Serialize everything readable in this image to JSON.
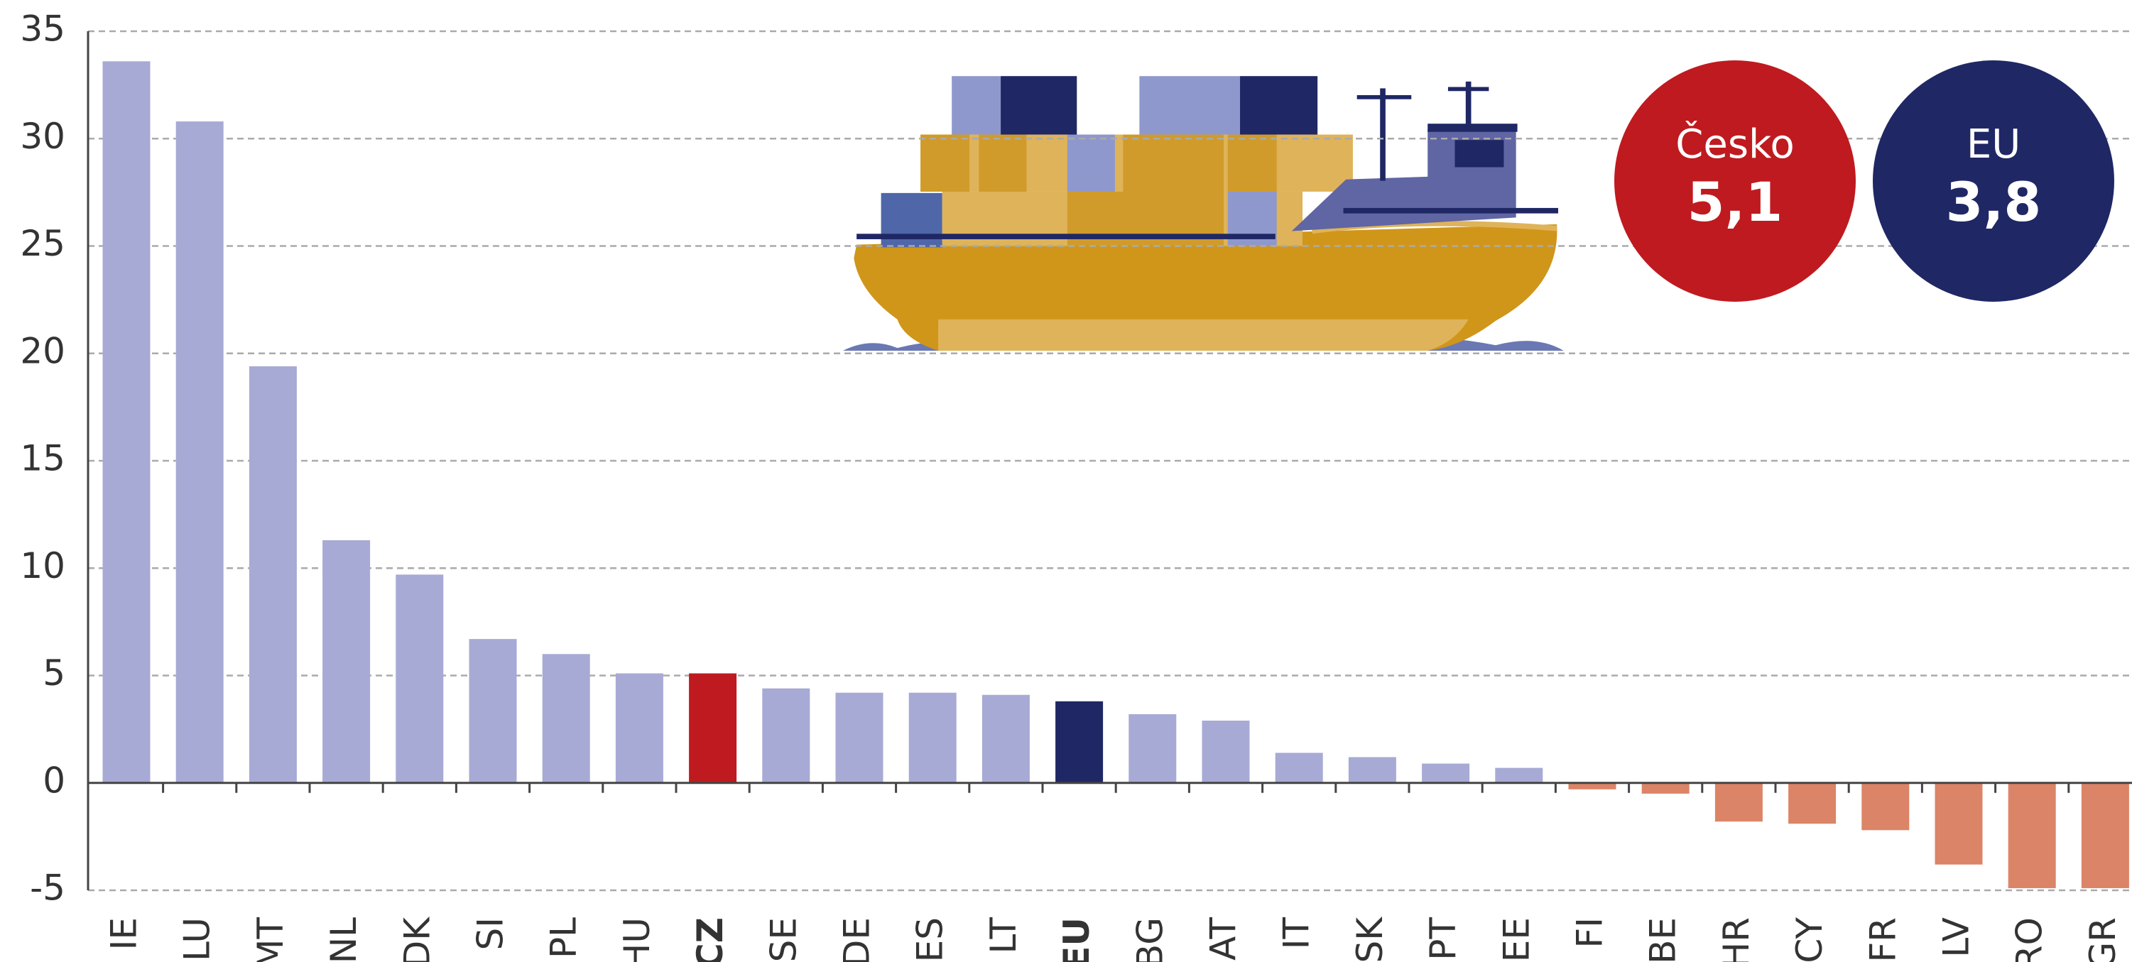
{
  "chart_data": {
    "type": "bar",
    "categories": [
      "IE",
      "LU",
      "MT",
      "NL",
      "DK",
      "SI",
      "PL",
      "HU",
      "CZ",
      "SE",
      "DE",
      "ES",
      "LT",
      "EU",
      "BG",
      "AT",
      "IT",
      "SK",
      "PT",
      "EE",
      "FI",
      "BE",
      "HR",
      "CY",
      "FR",
      "LV",
      "RO",
      "GR"
    ],
    "values": [
      33.6,
      30.8,
      19.4,
      11.3,
      9.7,
      6.7,
      6.0,
      5.1,
      5.1,
      4.4,
      4.2,
      4.2,
      4.1,
      3.8,
      3.2,
      2.9,
      1.4,
      1.2,
      0.9,
      0.7,
      -0.3,
      -0.5,
      -1.8,
      -1.9,
      -2.2,
      -3.8,
      -4.9,
      -4.9
    ],
    "colors": [
      "#a7aad4",
      "#a7aad4",
      "#a7aad4",
      "#a7aad4",
      "#a7aad4",
      "#a7aad4",
      "#a7aad4",
      "#a7aad4",
      "#bf1a1f",
      "#a7aad4",
      "#a7aad4",
      "#a7aad4",
      "#a7aad4",
      "#1f2765",
      "#a7aad4",
      "#a7aad4",
      "#a7aad4",
      "#a7aad4",
      "#a7aad4",
      "#a7aad4",
      "#dc8467",
      "#dc8467",
      "#dc8467",
      "#dc8467",
      "#dc8467",
      "#dc8467",
      "#dc8467",
      "#dc8467"
    ],
    "ylim": [
      -5,
      35
    ],
    "yticks": [
      -5,
      0,
      5,
      10,
      15,
      20,
      25,
      30,
      35
    ],
    "grid": true,
    "badges": [
      {
        "label": "Česko",
        "value": 5.1,
        "value_label": "5,1",
        "color": "#bf1a1f"
      },
      {
        "label": "EU",
        "value": 3.8,
        "value_label": "3,8",
        "color": "#1f2765"
      }
    ]
  }
}
